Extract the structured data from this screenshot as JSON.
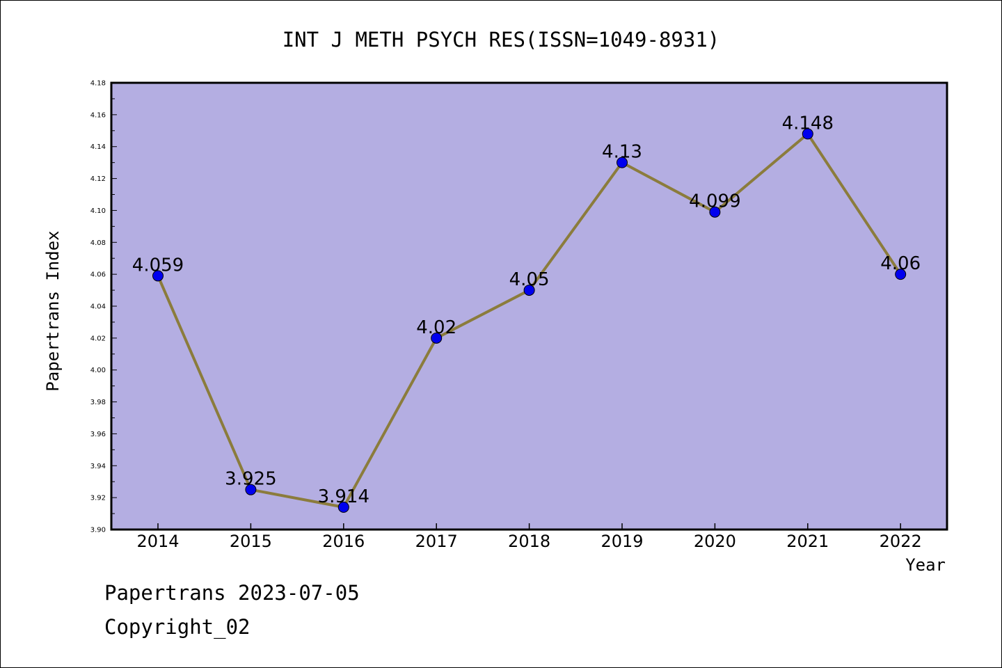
{
  "chart_data": {
    "type": "line",
    "title": "INT J METH PSYCH RES(ISSN=1049-8931)",
    "xlabel": "Year",
    "ylabel": "Papertrans Index",
    "categories": [
      "2014",
      "2015",
      "2016",
      "2017",
      "2018",
      "2019",
      "2020",
      "2021",
      "2022"
    ],
    "series": [
      {
        "values": [
          4.059,
          3.925,
          3.914,
          4.02,
          4.05,
          4.13,
          4.099,
          4.148,
          4.06
        ]
      }
    ],
    "data_labels": [
      "4.059",
      "3.925",
      "3.914",
      "4.02",
      "4.05",
      "4.13",
      "4.099",
      "4.148",
      "4.06"
    ],
    "ylim": [
      3.9,
      4.18
    ],
    "yticks": [
      "3.90",
      "3.92",
      "3.94",
      "3.96",
      "3.98",
      "4.00",
      "4.02",
      "4.04",
      "4.06",
      "4.08",
      "4.10",
      "4.12",
      "4.14",
      "4.16",
      "4.18"
    ],
    "grid": false,
    "legend": "none",
    "colors": {
      "plot_background": "#b4aee2",
      "line": "#8b7c3c",
      "marker": "#0000ee",
      "axis": "#000000"
    }
  },
  "footer": {
    "line1": "Papertrans 2023-07-05",
    "line2": "Copyright_02"
  }
}
